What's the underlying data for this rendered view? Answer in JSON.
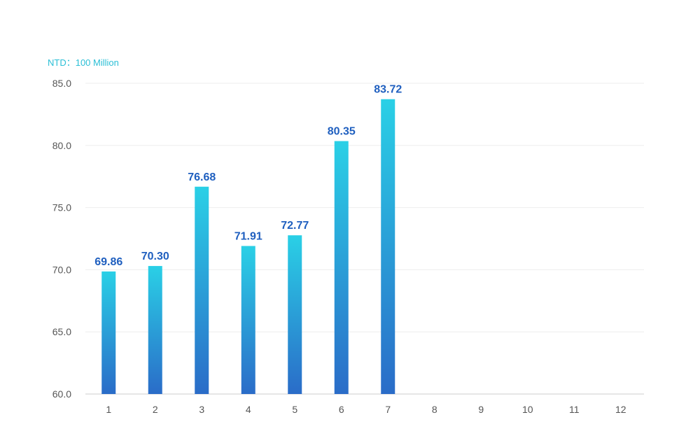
{
  "chart_data": {
    "type": "bar",
    "unit_label": "NTD：100 Million",
    "categories": [
      "1",
      "2",
      "3",
      "4",
      "5",
      "6",
      "7",
      "8",
      "9",
      "10",
      "11",
      "12"
    ],
    "values": [
      69.86,
      70.3,
      76.68,
      71.91,
      72.77,
      80.35,
      83.72,
      null,
      null,
      null,
      null,
      null
    ],
    "data_labels": [
      "69.86",
      "70.30",
      "76.68",
      "71.91",
      "72.77",
      "80.35",
      "83.72",
      "",
      "",
      "",
      "",
      ""
    ],
    "y_ticks": [
      "60.0",
      "65.0",
      "70.0",
      "75.0",
      "80.0",
      "85.0"
    ],
    "ylim": [
      60,
      85
    ],
    "grid": true,
    "legend": "none",
    "colors": {
      "bar_top": "#2ad0e6",
      "bar_bottom": "#2a6cc8",
      "data_label": "#1f5fbf",
      "unit_label": "#2bbfd6",
      "gridline": "#eeeeee",
      "axis": "#cccccc"
    }
  }
}
